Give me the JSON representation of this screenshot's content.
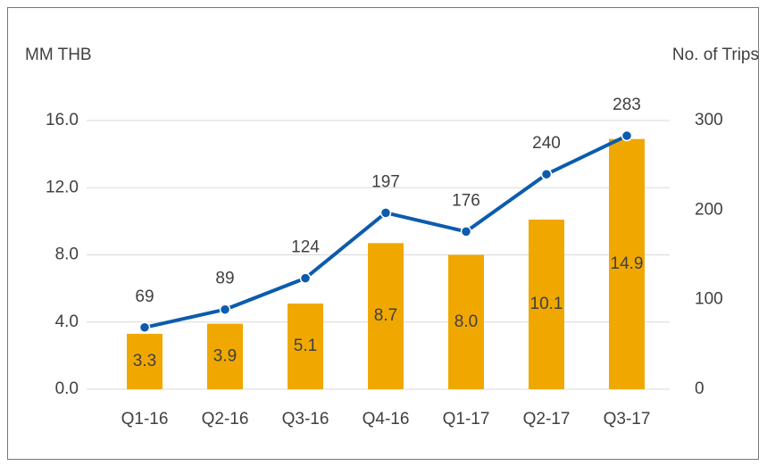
{
  "chart_data": {
    "type": "combo",
    "ylabel": "MM THB",
    "y2label": "No. of Trips",
    "categories": [
      "Q1-16",
      "Q2-16",
      "Q3-16",
      "Q4-16",
      "Q1-17",
      "Q2-17",
      "Q3-17"
    ],
    "series": [
      {
        "type": "bar",
        "color": "#f0a800",
        "values": [
          3.3,
          3.9,
          5.1,
          8.7,
          8.0,
          10.1,
          14.9
        ],
        "value_labels": [
          "3.3",
          "3.9",
          "5.1",
          "8.7",
          "8.0",
          "10.1",
          "14.9"
        ]
      },
      {
        "type": "line",
        "color": "#0b5cad",
        "axis": "y2",
        "values": [
          69,
          89,
          124,
          197,
          176,
          240,
          283
        ]
      }
    ],
    "ylim": [
      0,
      16
    ],
    "yticks": [
      {
        "value": 0,
        "label": "0.0"
      },
      {
        "value": 4,
        "label": "4.0"
      },
      {
        "value": 8,
        "label": "8.0"
      },
      {
        "value": 12,
        "label": "12.0"
      },
      {
        "value": 16,
        "label": "16.0"
      }
    ],
    "y2lim": [
      0,
      300
    ],
    "y2ticks": [
      0,
      100,
      200,
      300
    ],
    "grid": true
  }
}
